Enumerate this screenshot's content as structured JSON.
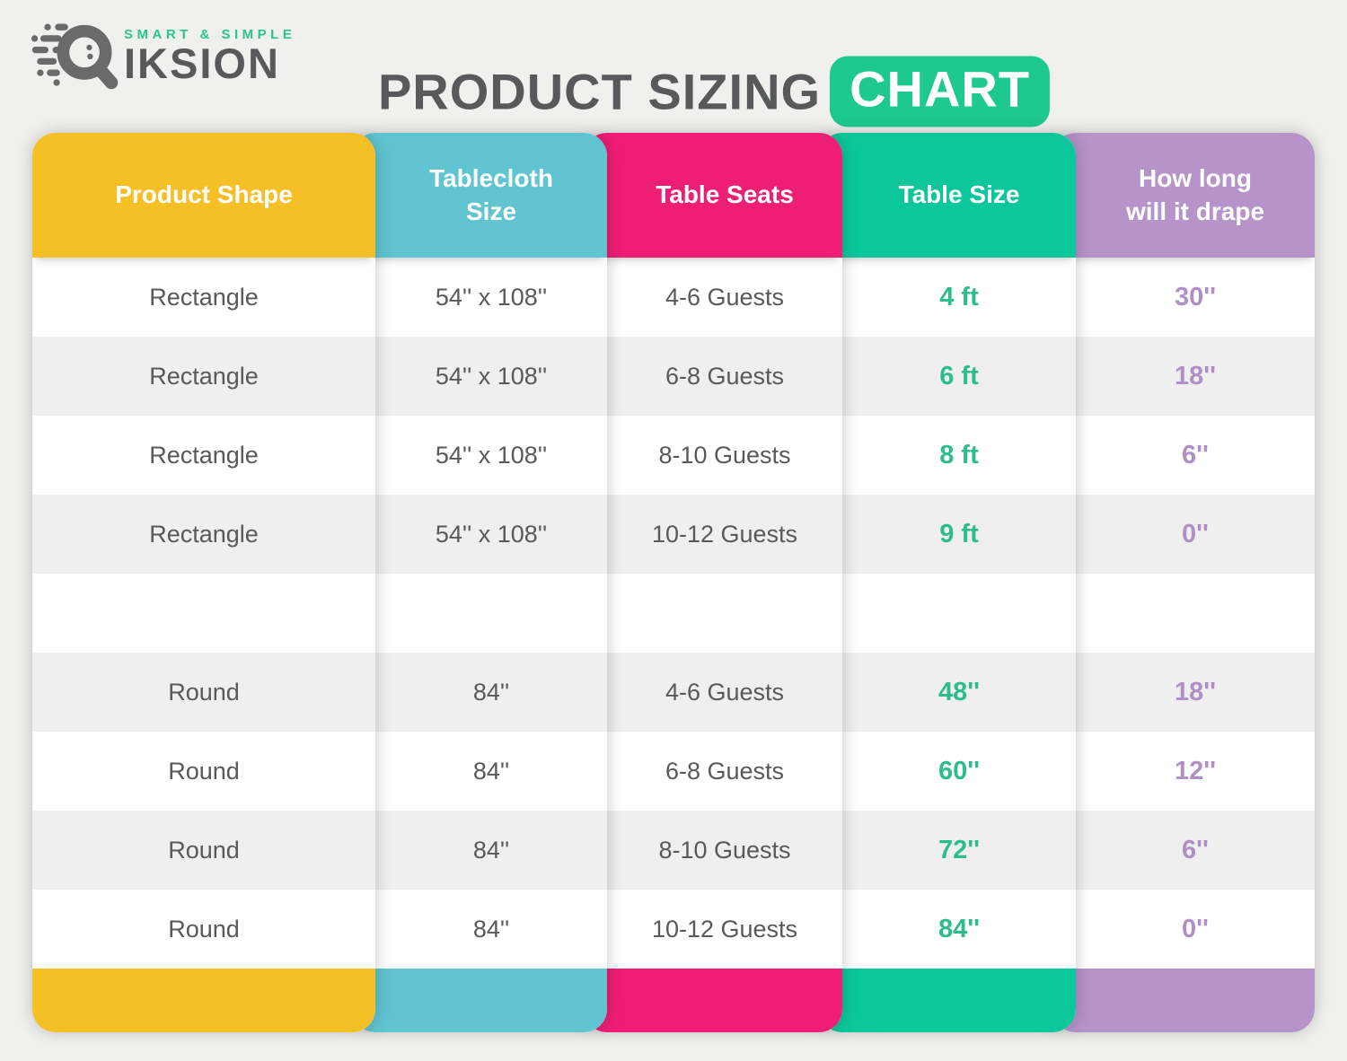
{
  "logo": {
    "tagline": "SMART & SIMPLE",
    "brand": "IKSION"
  },
  "title": {
    "main": "PRODUCT SIZING",
    "badge": "CHART"
  },
  "colors": {
    "page_bg": "#F0F0EE",
    "title_text": "#58595B",
    "badge_green": "#1EC98F",
    "tagline_green": "#2BC48A",
    "logo_gray": "#6A6A6A",
    "row_alt": "#EFEFEF",
    "cell_text": "#58595B",
    "table_size_green": "#2DBD8D",
    "drape_purple": "#B18FC6"
  },
  "table": {
    "columns": [
      {
        "label": "Product Shape",
        "color": "#F5BF26",
        "value_style": "plain"
      },
      {
        "label": "Tablecloth\nSize",
        "color": "#60C4D1",
        "value_style": "plain"
      },
      {
        "label": "Table Seats",
        "color": "#EF1E75",
        "value_style": "plain"
      },
      {
        "label": "Table Size",
        "color": "#0CC79B",
        "value_style": "green"
      },
      {
        "label": "How long\nwill it drape",
        "color": "#B693C9",
        "value_style": "purple"
      }
    ],
    "rows": [
      [
        "Rectangle",
        "54'' x 108''",
        "4-6 Guests",
        "4 ft",
        "30''"
      ],
      [
        "Rectangle",
        "54'' x 108''",
        "6-8 Guests",
        "6 ft",
        "18''"
      ],
      [
        "Rectangle",
        "54'' x 108''",
        "8-10 Guests",
        "8 ft",
        "6''"
      ],
      [
        "Rectangle",
        "54'' x 108''",
        "10-12 Guests",
        "9 ft",
        "0''"
      ],
      [
        "",
        "",
        "",
        "",
        ""
      ],
      [
        "Round",
        "84''",
        "4-6 Guests",
        "48''",
        "18''"
      ],
      [
        "Round",
        "84''",
        "6-8 Guests",
        "60''",
        "12''"
      ],
      [
        "Round",
        "84''",
        "8-10 Guests",
        "72''",
        "6''"
      ],
      [
        "Round",
        "84''",
        "10-12 Guests",
        "84''",
        "0''"
      ]
    ]
  },
  "chart_data": {
    "type": "table",
    "title": "PRODUCT SIZING CHART",
    "columns": [
      "Product Shape",
      "Tablecloth Size",
      "Table Seats",
      "Table Size",
      "How long will it drape"
    ],
    "rows": [
      [
        "Rectangle",
        "54'' x 108''",
        "4-6 Guests",
        "4 ft",
        "30''"
      ],
      [
        "Rectangle",
        "54'' x 108''",
        "6-8 Guests",
        "6 ft",
        "18''"
      ],
      [
        "Rectangle",
        "54'' x 108''",
        "8-10 Guests",
        "8 ft",
        "6''"
      ],
      [
        "Rectangle",
        "54'' x 108''",
        "10-12 Guests",
        "9 ft",
        "0''"
      ],
      [
        "Round",
        "84''",
        "4-6 Guests",
        "48''",
        "18''"
      ],
      [
        "Round",
        "84''",
        "6-8 Guests",
        "60''",
        "12''"
      ],
      [
        "Round",
        "84''",
        "8-10 Guests",
        "72''",
        "6''"
      ],
      [
        "Round",
        "84''",
        "10-12 Guests",
        "84''",
        "0''"
      ]
    ]
  }
}
